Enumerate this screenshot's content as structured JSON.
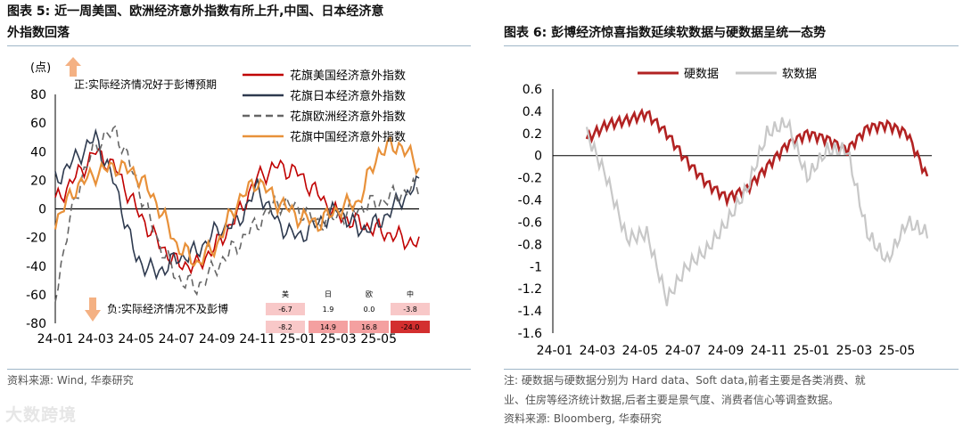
{
  "left": {
    "title_line1": "图表 5:   近一周美国、欧洲经济意外指数有所上升,中国、日本经济意",
    "title_line2": "外指数回落",
    "source": "资料来源:  Wind, 华泰研究"
  },
  "right": {
    "title": "图表 6:   彭博经济惊喜指数延续软数据与硬数据呈统一态势",
    "note_line1": "注:  硬数据与硬数据分别为 Hard data、Soft data,前者主要是各类消费、就",
    "note_line2": "业、住房等经济统计数据,后者主要是景气度、消费者信心等调查数据。",
    "source": "资料来源:    Bloomberg, 华泰研究"
  },
  "watermark": "大数跨境",
  "chart_data": [
    {
      "type": "line",
      "ylabel": "(点)",
      "ylim": [
        -80,
        80
      ],
      "yticks": [
        -80,
        -60,
        -40,
        -20,
        0,
        20,
        40,
        60,
        80
      ],
      "xticks": [
        "24-01",
        "24-03",
        "24-05",
        "24-07",
        "24-09",
        "24-11",
        "25-01",
        "25-03",
        "25-05"
      ],
      "x": [
        "24-01",
        "24-02",
        "24-03",
        "24-04",
        "24-05",
        "24-06",
        "24-07",
        "24-08",
        "24-09",
        "24-10",
        "24-11",
        "24-12",
        "25-01",
        "25-02",
        "25-03",
        "25-04",
        "25-05",
        "25-06",
        "25-07"
      ],
      "annotation_top": "正:实际经济情况好于彭博预期",
      "annotation_bottom": "负:实际经济情况不及彭博",
      "series": [
        {
          "name": "花旗美国经济意外指数",
          "color": "#c00000",
          "dash": "",
          "values": [
            5,
            22,
            40,
            28,
            0,
            -22,
            -38,
            -40,
            -25,
            -5,
            22,
            30,
            25,
            10,
            -5,
            -10,
            -15,
            -20,
            -25
          ]
        },
        {
          "name": "花旗日本经济意外指数",
          "color": "#2e3a4f",
          "dash": "",
          "values": [
            20,
            35,
            50,
            15,
            -35,
            -45,
            -35,
            -30,
            -15,
            -10,
            15,
            -10,
            -20,
            -10,
            0,
            -15,
            -10,
            5,
            18
          ]
        },
        {
          "name": "花旗欧洲经济意外指数",
          "color": "#666666",
          "dash": "8,5",
          "values": [
            -60,
            10,
            45,
            55,
            20,
            -20,
            -48,
            -55,
            -40,
            -25,
            -10,
            5,
            0,
            -10,
            -5,
            0,
            5,
            10,
            15
          ]
        },
        {
          "name": "花旗中国经济意外指数",
          "color": "#e8913a",
          "dash": "",
          "values": [
            -10,
            15,
            25,
            30,
            25,
            5,
            -25,
            -38,
            -25,
            5,
            20,
            5,
            -5,
            -10,
            0,
            5,
            40,
            45,
            30
          ]
        }
      ],
      "table": {
        "headers": [
          "美",
          "日",
          "欧",
          "中"
        ],
        "row1": [
          "-6.7",
          "1.9",
          "0.0",
          "-3.8"
        ],
        "row2": [
          "-8.2",
          "14.9",
          "16.8",
          "-24.0"
        ]
      }
    },
    {
      "type": "line",
      "ylim": [
        -1.6,
        0.6
      ],
      "yticks": [
        "0.6",
        "0.4",
        "0.2",
        "0",
        "-0.2",
        "-0.4",
        "-0.6",
        "-0.8",
        "-1",
        "-1.2",
        "-1.4",
        "-1.6"
      ],
      "xticks": [
        "24-01",
        "24-03",
        "24-05",
        "24-07",
        "24-09",
        "24-11",
        "25-01",
        "25-03",
        "25-05"
      ],
      "x": [
        "24-02",
        "24-03",
        "24-04",
        "24-05",
        "24-06",
        "24-07",
        "24-08",
        "24-09",
        "24-10",
        "24-11",
        "24-12",
        "25-01",
        "25-02",
        "25-03",
        "25-04",
        "25-05",
        "25-06",
        "25-07"
      ],
      "series": [
        {
          "name": "硬数据",
          "color": "#b22222",
          "values": [
            0.15,
            0.28,
            0.32,
            0.38,
            0.2,
            -0.05,
            -0.25,
            -0.38,
            -0.3,
            -0.1,
            0.1,
            0.2,
            0.15,
            0.05,
            0.25,
            0.28,
            0.2,
            -0.2
          ]
        },
        {
          "name": "软数据",
          "color": "#c8c8c8",
          "values": [
            0.2,
            -0.2,
            -0.75,
            -0.7,
            -1.3,
            -1.0,
            -0.85,
            -0.6,
            -0.3,
            0.2,
            0.3,
            -0.2,
            0.05,
            0.05,
            -0.7,
            -0.95,
            -0.6,
            -0.7
          ]
        }
      ]
    }
  ]
}
